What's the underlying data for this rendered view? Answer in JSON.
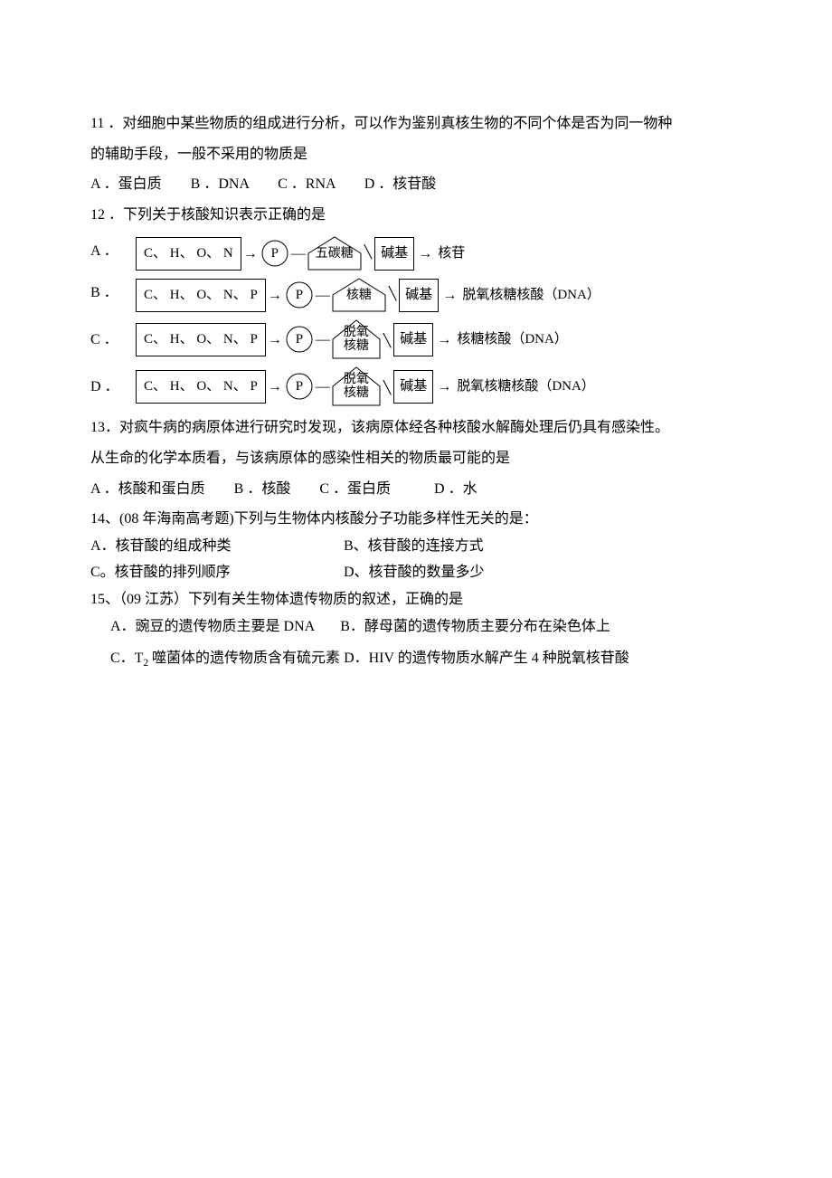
{
  "q11": {
    "num": "11 ．",
    "text_line1": "对细胞中某些物质的组成进行分析，可以作为鉴别真核生物的不同个体是否为同一物种",
    "text_line2": "的辅助手段，一般不采用的物质是",
    "opts": "A ．蛋白质　　B ．DNA　　C ．RNA　　D ．核苷酸"
  },
  "q12": {
    "num": "12 ．",
    "text": "下列关于核酸知识表示正确的是",
    "rows": [
      {
        "letter": "A ．",
        "elems": "C、  H、  O、  N",
        "p": "P",
        "sugar": "五碳糖",
        "sugar_two_line": false,
        "base": "碱基",
        "result": "核苷"
      },
      {
        "letter": "B ．",
        "elems": "C、  H、  O、  N、  P",
        "p": "P",
        "sugar": "核糖",
        "sugar_two_line": false,
        "base": "碱基",
        "result": "脱氧核糖核酸（DNA）"
      },
      {
        "letter": "C ．",
        "elems": "C、  H、  O、  N、  P",
        "p": "P",
        "sugar": "脱氧\n核糖",
        "sugar_two_line": true,
        "base": "碱基",
        "result": "核糖核酸（DNA）"
      },
      {
        "letter": "D ．",
        "elems": "C、  H、  O、  N、  P",
        "p": "P",
        "sugar": "脱氧\n核糖",
        "sugar_two_line": true,
        "base": "碱基",
        "result": "脱氧核糖核酸（DNA）"
      }
    ]
  },
  "q13": {
    "num": "13．",
    "text_line1": "对疯牛病的病原体进行研究时发现，该病原体经各种核酸水解酶处理后仍具有感染性。",
    "text_line2": "从生命的化学本质看，与该病原体的感染性相关的物质最可能的是",
    "opts": "A ．核酸和蛋白质　　B ．核酸　　C ．蛋白质　　　D ．水"
  },
  "q14": {
    "num": "14、",
    "src": "(08 年海南高考题)",
    "text": "下列与生物体内核酸分子功能多样性无关的是：",
    "optA": "A．核苷酸的组成种类",
    "optB": "B、核苷酸的连接方式",
    "optC": " C。核苷酸的排列顺序",
    "optD": "D、核苷酸的数量多少"
  },
  "q15": {
    "num": "15、",
    "src": "（09 江苏）",
    "text": "下列有关生物体遗传物质的叙述，正确的是",
    "optA": "A．豌豆的遗传物质主要是 DNA",
    "optB": "B．酵母菌的遗传物质主要分布在染色体上",
    "optC_pre": "C．T",
    "optC_sub": "2",
    "optC_post": " 噬菌体的遗传物质含有硫元素",
    "optD": "D．HIV 的遗传物质水解产生 4 种脱氧核苷酸"
  }
}
